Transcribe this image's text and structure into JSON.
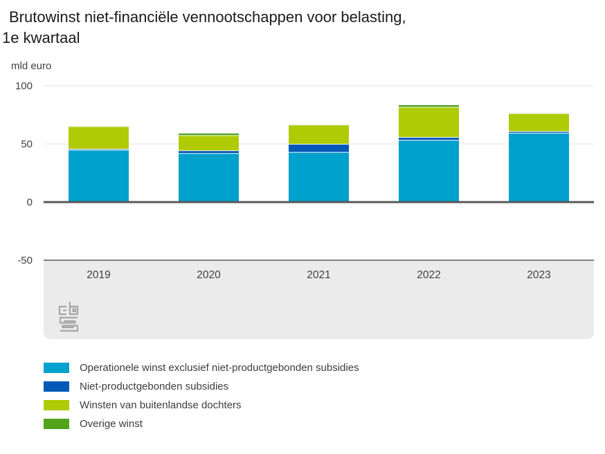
{
  "title": {
    "line1": "Brutowinst niet-financiële vennootschappen voor belasting,",
    "line2": "1e kwartaal"
  },
  "unit_label": "mld euro",
  "logo": {
    "name": "cbs-logo",
    "color": "#a6a6a6"
  },
  "colors": {
    "grid": "#e0e0e0",
    "axis": "#58585a",
    "axis_text": "#404040",
    "panel": "#ebebeb",
    "title_text": "#1a1a1a",
    "segment_divider": "#ffffff"
  },
  "chart_data": {
    "type": "bar",
    "stacked": true,
    "title": "Brutowinst niet-financiële vennootschappen voor belasting, 1e kwartaal",
    "ylabel": "mld euro",
    "ylim": [
      -50,
      100
    ],
    "yticks": [
      100,
      50,
      0,
      -50
    ],
    "grid": true,
    "legend_position": "bottom",
    "categories": [
      "2019",
      "2020",
      "2021",
      "2022",
      "2023"
    ],
    "series": [
      {
        "name": "Operationele winst exclusief niet-productgebonden subsidies",
        "color": "#00a1cd",
        "values": [
          44.6,
          41.8,
          42.8,
          53.2,
          59.3
        ]
      },
      {
        "name": "Niet-productgebonden subsidies",
        "color": "#0058b8",
        "values": [
          1.0,
          2.4,
          7.0,
          2.5,
          1.4
        ]
      },
      {
        "name": "Winsten van buitenlandse dochters",
        "color": "#afcb05",
        "values": [
          19.3,
          13.0,
          16.5,
          25.8,
          15.4
        ]
      },
      {
        "name": "Overige winst",
        "color": "#53a31d",
        "values": [
          0.4,
          1.8,
          0.4,
          1.9,
          0.4
        ]
      }
    ],
    "totals": [
      65.3,
      59.0,
      66.7,
      83.4,
      76.5
    ]
  }
}
